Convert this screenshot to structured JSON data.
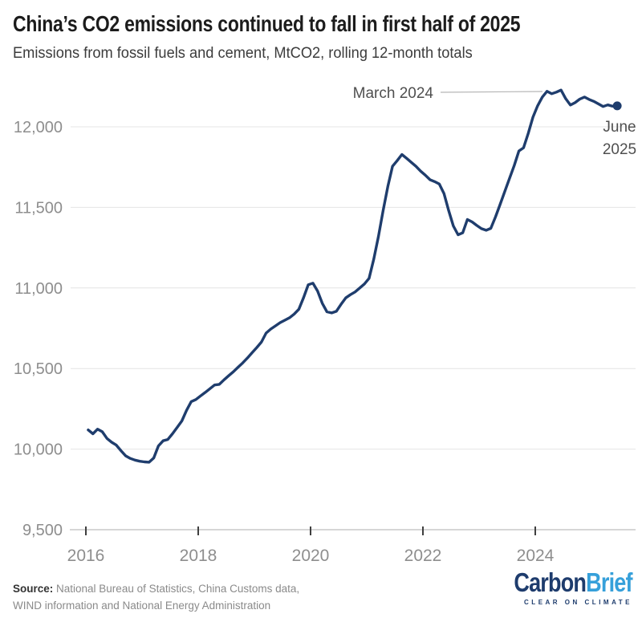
{
  "header": {
    "title": "China’s CO2 emissions continued to fall in first half of 2025",
    "subtitle": "Emissions from fossil fuels and cement, MtCO2, rolling 12-month totals"
  },
  "chart_data": {
    "type": "line",
    "title": "China’s CO2 emissions continued to fall in first half of 2025",
    "subtitle": "Emissions from fossil fuels and cement, MtCO2, rolling 12-month totals",
    "xlabel": "",
    "ylabel": "MtCO2",
    "grid": true,
    "legend": "none",
    "line_color": "#1f3d6d",
    "ylim": [
      9500,
      12300
    ],
    "yticks": [
      9500,
      10000,
      10500,
      11000,
      11500,
      12000
    ],
    "ytick_labels": [
      "9,500",
      "10,000",
      "10,500",
      "11,000",
      "11,500",
      "12,000"
    ],
    "xticks": [
      2016,
      2018,
      2020,
      2022,
      2024
    ],
    "series": [
      {
        "name": "China CO2 emissions, rolling 12-month total (MtCO2)",
        "start": "2016-01",
        "end": "2025-06",
        "frequency": "monthly",
        "values": [
          10119,
          10095,
          10124,
          10108,
          10066,
          10043,
          10025,
          9990,
          9958,
          9942,
          9932,
          9925,
          9921,
          9919,
          9945,
          10020,
          10052,
          10060,
          10095,
          10135,
          10175,
          10240,
          10295,
          10308,
          10330,
          10352,
          10375,
          10398,
          10402,
          10430,
          10455,
          10480,
          10508,
          10535,
          10565,
          10598,
          10630,
          10665,
          10720,
          10745,
          10765,
          10785,
          10800,
          10815,
          10838,
          10868,
          10940,
          11020,
          11030,
          10980,
          10905,
          10852,
          10845,
          10855,
          10898,
          10938,
          10958,
          10975,
          11000,
          11025,
          11060,
          11180,
          11320,
          11480,
          11630,
          11755,
          11790,
          11828,
          11805,
          11780,
          11755,
          11725,
          11700,
          11672,
          11660,
          11645,
          11585,
          11480,
          11385,
          11330,
          11342,
          11425,
          11410,
          11388,
          11368,
          11358,
          11370,
          11440,
          11520,
          11600,
          11680,
          11760,
          11850,
          11870,
          11960,
          12060,
          12130,
          12185,
          12220,
          12205,
          12215,
          12228,
          12175,
          12135,
          12150,
          12172,
          12185,
          12170,
          12158,
          12142,
          12126,
          12136,
          12128,
          12130
        ]
      }
    ],
    "annotations": [
      {
        "label": "March 2024",
        "lines": [
          "March 2024"
        ],
        "date": "2024-03",
        "value": 12220
      },
      {
        "label": "June 2025",
        "lines": [
          "June",
          "2025"
        ],
        "date": "2025-06",
        "value": 12130
      }
    ]
  },
  "footer": {
    "source": {
      "label": "Source:",
      "line1": " National Bureau of Statistics, China Customs data,",
      "line2": "WIND information and National Energy Administration"
    },
    "logo": {
      "part1": "Carbon",
      "part2": "Brief",
      "tagline": "CLEAR ON CLIMATE"
    }
  },
  "colors": {
    "line": "#1f3d6d",
    "logo_navy": "#1e3c6d",
    "logo_blue": "#36a0da",
    "annotation_text": "#4f4f4f",
    "axis_text": "#8e8e8e"
  }
}
